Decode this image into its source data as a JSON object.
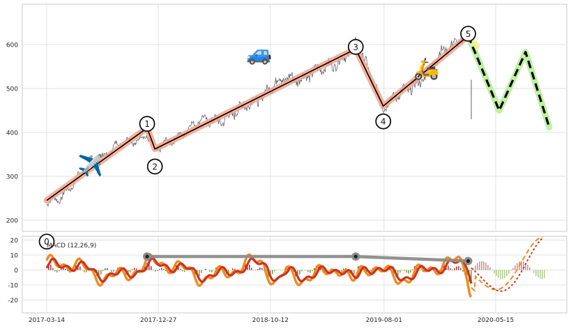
{
  "chart_data": [
    {
      "type": "line",
      "panel": "price",
      "title": "",
      "xlabel": "",
      "ylabel": "",
      "ylim": [
        180,
        690
      ],
      "yticks": [
        200,
        300,
        400,
        500,
        600
      ],
      "grid": true,
      "wave_points": [
        {
          "label": "0",
          "date": "2017-03-14",
          "price": 245
        },
        {
          "label": "1",
          "date": "2017-11-28",
          "price": 410
        },
        {
          "label": "2",
          "date": "2017-12-18",
          "price": 362
        },
        {
          "label": "3",
          "date": "2019-05-20",
          "price": 590
        },
        {
          "label": "4",
          "date": "2019-07-30",
          "price": 460
        },
        {
          "label": "5",
          "date": "2020-03-05",
          "price": 620
        }
      ],
      "projection": [
        {
          "date": "2020-03-05",
          "price": 620
        },
        {
          "date": "2020-05-24",
          "price": 450
        },
        {
          "date": "2020-07-31",
          "price": 583
        },
        {
          "date": "2020-09-30",
          "price": 412
        }
      ],
      "icons": [
        {
          "name": "airplane-icon",
          "glyph": "✈️",
          "date": "2017-07-05",
          "price": 325
        },
        {
          "name": "car-icon",
          "glyph": "🚙",
          "date": "2018-09-13",
          "price": 580
        },
        {
          "name": "scooter-icon",
          "glyph": "🛵",
          "date": "2019-11-19",
          "price": 545
        }
      ],
      "colors": {
        "price": "#4a5160",
        "trend": "#000000",
        "trend_glow": "#f2a38c",
        "projection": "#000000",
        "projection_glow": "#b8ee9a",
        "projection_glow_start": "#f0f29a"
      }
    },
    {
      "type": "line",
      "panel": "macd",
      "title": "MACD (12,26,9)",
      "xlabel": "",
      "ylabel": "",
      "ylim": [
        -28,
        22
      ],
      "yticks": [
        -20,
        -10,
        0,
        10,
        20
      ],
      "xticks": [
        "2017-03-14",
        "2017-12-27",
        "2018-10-12",
        "2019-08-01",
        "2020-05-15"
      ],
      "grid": true,
      "divergence_line": [
        {
          "date": "2017-11-28",
          "value": 9
        },
        {
          "date": "2019-05-20",
          "value": 9
        },
        {
          "date": "2020-03-05",
          "value": 6
        }
      ],
      "colors": {
        "macd": "#f28a1c",
        "signal": "#cc3322",
        "hist_pos": "#9b2a2a",
        "hist_neg": "#6e9b2a",
        "divergence": "#8c8c8c"
      }
    }
  ]
}
